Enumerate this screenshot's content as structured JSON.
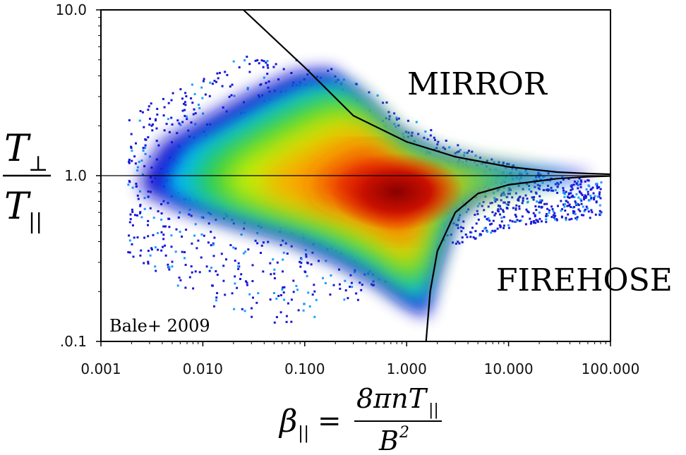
{
  "chart_data": {
    "type": "heatmap",
    "xscale": "log",
    "yscale": "log",
    "xlim": [
      0.001,
      100
    ],
    "ylim": [
      0.1,
      10
    ],
    "x_ticks": [
      "0.001",
      "0.010",
      "0.100",
      "1.000",
      "10.000",
      "100.000"
    ],
    "y_ticks": [
      "10.0",
      "1.0",
      ".0.1"
    ],
    "x_tick_values": [
      0.001,
      0.01,
      0.1,
      1,
      10,
      100
    ],
    "y_tick_values": [
      10,
      1,
      0.1
    ],
    "grid": false,
    "ylabel": {
      "numerator": "T",
      "numerator_sub": "⊥",
      "denominator": "T",
      "denominator_sub": "||"
    },
    "xlabel": {
      "lhs": "β",
      "lhs_sub": "||",
      "equals": "=",
      "numerator": "8πnT",
      "numerator_sub": "||",
      "denominator": "B",
      "denominator_sup": "2"
    },
    "annotations": [
      "MIRROR",
      "FIREHOSE",
      "Bale+ 2009"
    ],
    "reference_line_y": 1.0,
    "density": {
      "colormap": [
        "#1010d0",
        "#00c8ff",
        "#30d030",
        "#d8f000",
        "#ffa000",
        "#e82000",
        "#a00000"
      ],
      "core_peak": {
        "beta": 0.8,
        "ratio": 0.8
      },
      "extent_beta": [
        0.002,
        60
      ],
      "extent_ratio": [
        0.15,
        6
      ]
    },
    "threshold_curves": [
      {
        "name": "MIRROR",
        "points": [
          [
            0.025,
            10
          ],
          [
            0.1,
            4.5
          ],
          [
            0.3,
            2.3
          ],
          [
            1,
            1.6
          ],
          [
            3,
            1.3
          ],
          [
            10,
            1.13
          ],
          [
            30,
            1.05
          ],
          [
            60,
            1.03
          ],
          [
            100,
            1.02
          ]
        ]
      },
      {
        "name": "FIREHOSE",
        "points": [
          [
            1.55,
            0.1
          ],
          [
            1.7,
            0.2
          ],
          [
            2,
            0.35
          ],
          [
            3,
            0.6
          ],
          [
            5,
            0.78
          ],
          [
            10,
            0.88
          ],
          [
            30,
            0.96
          ],
          [
            60,
            0.985
          ],
          [
            100,
            0.995
          ]
        ]
      }
    ]
  }
}
